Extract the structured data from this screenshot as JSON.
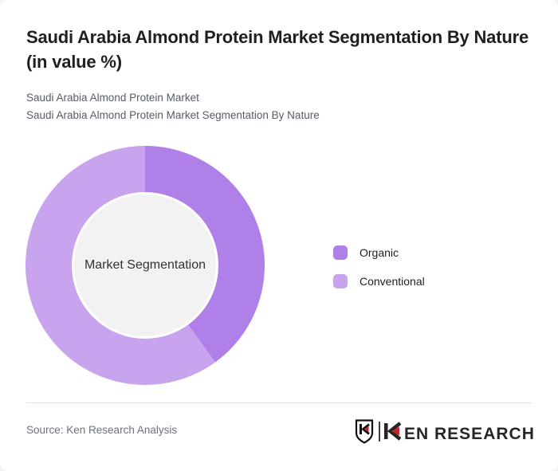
{
  "page": {
    "title": "Saudi Arabia Almond Protein Market Segmentation By Nature (in value %)",
    "subtitle_line1": "Saudi Arabia Almond Protein Market",
    "subtitle_line2": "Saudi Arabia Almond Protein Market Segmentation By Nature",
    "source": "Source: Ken Research Analysis",
    "brand": {
      "name": "KEN RESEARCH",
      "wordmark_rest": "EN RESEARCH",
      "accent_red": "#c1272d",
      "text_color": "#262626"
    }
  },
  "chart_data": {
    "type": "pie",
    "subtype": "donut",
    "title": "Saudi Arabia Almond Protein Market Segmentation By Nature (in value %)",
    "unit": "value %",
    "center_label": "Market Segmentation",
    "start_angle_deg": 0,
    "legend_position": "right",
    "hole_color": "#f2f2f2",
    "categories": [
      "Organic",
      "Conventional"
    ],
    "values": [
      40,
      60
    ],
    "series": [
      {
        "name": "Organic",
        "value": 40,
        "color": "#ae80e8"
      },
      {
        "name": "Conventional",
        "value": 60,
        "color": "#c8a4ee"
      }
    ]
  }
}
